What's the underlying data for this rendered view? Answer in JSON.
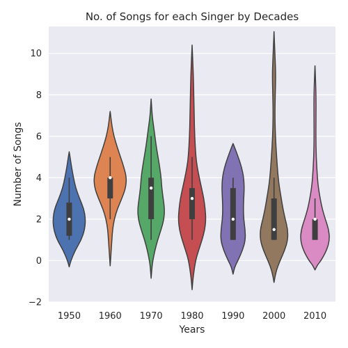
{
  "chart_data": {
    "type": "violin",
    "title": "No. of Songs for each Singer by Decades",
    "xlabel": "Years",
    "ylabel": "Number of Songs",
    "ylim": [
      -2,
      11.3
    ],
    "yticks": [
      -2,
      0,
      2,
      4,
      6,
      8,
      10
    ],
    "grid": true,
    "categories": [
      "1950",
      "1960",
      "1970",
      "1980",
      "1990",
      "2000",
      "2010"
    ],
    "colors": [
      "#4c72b0",
      "#dd8452",
      "#55a868",
      "#c44e52",
      "#8172b3",
      "#937860",
      "#da8bc3"
    ],
    "series": [
      {
        "category": "1950",
        "min": -0.3,
        "max": 5.25,
        "median": 2,
        "q1": 1.2,
        "q3": 2.8,
        "whisker_low": 1,
        "whisker_high": 4,
        "profile": [
          [
            -0.3,
            0.0
          ],
          [
            0.0,
            0.1
          ],
          [
            0.5,
            0.35
          ],
          [
            1.0,
            0.7
          ],
          [
            1.5,
            0.9
          ],
          [
            2.0,
            0.95
          ],
          [
            2.5,
            0.85
          ],
          [
            3.0,
            0.6
          ],
          [
            3.5,
            0.38
          ],
          [
            4.0,
            0.25
          ],
          [
            4.5,
            0.14
          ],
          [
            5.0,
            0.05
          ],
          [
            5.25,
            0.0
          ]
        ]
      },
      {
        "category": "1960",
        "min": -0.25,
        "max": 7.2,
        "median": 4,
        "q1": 3,
        "q3": 4,
        "whisker_low": 2,
        "whisker_high": 5,
        "profile": [
          [
            -0.25,
            0.0
          ],
          [
            0.5,
            0.06
          ],
          [
            1.0,
            0.1
          ],
          [
            1.5,
            0.14
          ],
          [
            2.0,
            0.24
          ],
          [
            2.5,
            0.42
          ],
          [
            3.0,
            0.68
          ],
          [
            3.5,
            0.9
          ],
          [
            4.0,
            0.95
          ],
          [
            4.5,
            0.8
          ],
          [
            5.0,
            0.6
          ],
          [
            5.5,
            0.4
          ],
          [
            6.0,
            0.22
          ],
          [
            6.5,
            0.1
          ],
          [
            7.0,
            0.03
          ],
          [
            7.2,
            0.0
          ]
        ]
      },
      {
        "category": "1970",
        "min": -0.85,
        "max": 7.8,
        "median": 3.5,
        "q1": 2,
        "q3": 4,
        "whisker_low": 1,
        "whisker_high": 6,
        "profile": [
          [
            -0.85,
            0.0
          ],
          [
            -0.3,
            0.05
          ],
          [
            0.0,
            0.1
          ],
          [
            0.5,
            0.22
          ],
          [
            1.0,
            0.38
          ],
          [
            1.5,
            0.58
          ],
          [
            2.0,
            0.75
          ],
          [
            2.5,
            0.78
          ],
          [
            3.0,
            0.7
          ],
          [
            3.5,
            0.62
          ],
          [
            4.0,
            0.58
          ],
          [
            4.5,
            0.5
          ],
          [
            5.0,
            0.4
          ],
          [
            5.5,
            0.3
          ],
          [
            6.0,
            0.22
          ],
          [
            6.5,
            0.14
          ],
          [
            7.0,
            0.06
          ],
          [
            7.8,
            0.0
          ]
        ]
      },
      {
        "category": "1980",
        "min": -1.4,
        "max": 10.4,
        "median": 3,
        "q1": 2,
        "q3": 3.5,
        "whisker_low": 1,
        "whisker_high": 5,
        "profile": [
          [
            -1.4,
            0.0
          ],
          [
            -0.8,
            0.06
          ],
          [
            0.0,
            0.2
          ],
          [
            0.5,
            0.38
          ],
          [
            1.0,
            0.58
          ],
          [
            1.5,
            0.74
          ],
          [
            2.0,
            0.8
          ],
          [
            2.5,
            0.76
          ],
          [
            3.0,
            0.68
          ],
          [
            3.5,
            0.55
          ],
          [
            4.0,
            0.42
          ],
          [
            4.5,
            0.3
          ],
          [
            5.0,
            0.22
          ],
          [
            6.0,
            0.15
          ],
          [
            7.0,
            0.12
          ],
          [
            8.0,
            0.1
          ],
          [
            9.0,
            0.07
          ],
          [
            10.0,
            0.02
          ],
          [
            10.4,
            0.0
          ]
        ]
      },
      {
        "category": "1990",
        "min": -0.65,
        "max": 5.65,
        "median": 2,
        "q1": 1,
        "q3": 3.5,
        "whisker_low": 1,
        "whisker_high": 4,
        "profile": [
          [
            -0.65,
            0.0
          ],
          [
            -0.3,
            0.1
          ],
          [
            0.0,
            0.28
          ],
          [
            0.5,
            0.55
          ],
          [
            1.0,
            0.72
          ],
          [
            1.5,
            0.7
          ],
          [
            2.0,
            0.62
          ],
          [
            2.5,
            0.6
          ],
          [
            3.0,
            0.62
          ],
          [
            3.5,
            0.65
          ],
          [
            4.0,
            0.62
          ],
          [
            4.5,
            0.5
          ],
          [
            5.0,
            0.3
          ],
          [
            5.4,
            0.12
          ],
          [
            5.65,
            0.0
          ]
        ]
      },
      {
        "category": "2000",
        "min": -1.05,
        "max": 11.05,
        "median": 1.5,
        "q1": 1,
        "q3": 3,
        "whisker_low": 1,
        "whisker_high": 4,
        "profile": [
          [
            -1.05,
            0.0
          ],
          [
            -0.5,
            0.12
          ],
          [
            0.0,
            0.35
          ],
          [
            0.5,
            0.62
          ],
          [
            1.0,
            0.8
          ],
          [
            1.5,
            0.8
          ],
          [
            2.0,
            0.65
          ],
          [
            2.5,
            0.52
          ],
          [
            3.0,
            0.42
          ],
          [
            3.5,
            0.32
          ],
          [
            4.0,
            0.24
          ],
          [
            5.0,
            0.15
          ],
          [
            6.0,
            0.08
          ],
          [
            7.0,
            0.05
          ],
          [
            8.0,
            0.07
          ],
          [
            9.0,
            0.1
          ],
          [
            10.0,
            0.05
          ],
          [
            11.05,
            0.0
          ]
        ]
      },
      {
        "category": "2010",
        "min": -0.45,
        "max": 9.4,
        "median": 2,
        "q1": 1,
        "q3": 2,
        "whisker_low": 1,
        "whisker_high": 3,
        "profile": [
          [
            -0.45,
            0.0
          ],
          [
            -0.2,
            0.15
          ],
          [
            0.0,
            0.35
          ],
          [
            0.5,
            0.68
          ],
          [
            1.0,
            0.85
          ],
          [
            1.5,
            0.8
          ],
          [
            2.0,
            0.6
          ],
          [
            2.5,
            0.42
          ],
          [
            3.0,
            0.3
          ],
          [
            3.5,
            0.2
          ],
          [
            4.0,
            0.14
          ],
          [
            5.0,
            0.07
          ],
          [
            6.0,
            0.05
          ],
          [
            7.0,
            0.06
          ],
          [
            8.0,
            0.06
          ],
          [
            9.0,
            0.02
          ],
          [
            9.4,
            0.0
          ]
        ]
      }
    ]
  }
}
